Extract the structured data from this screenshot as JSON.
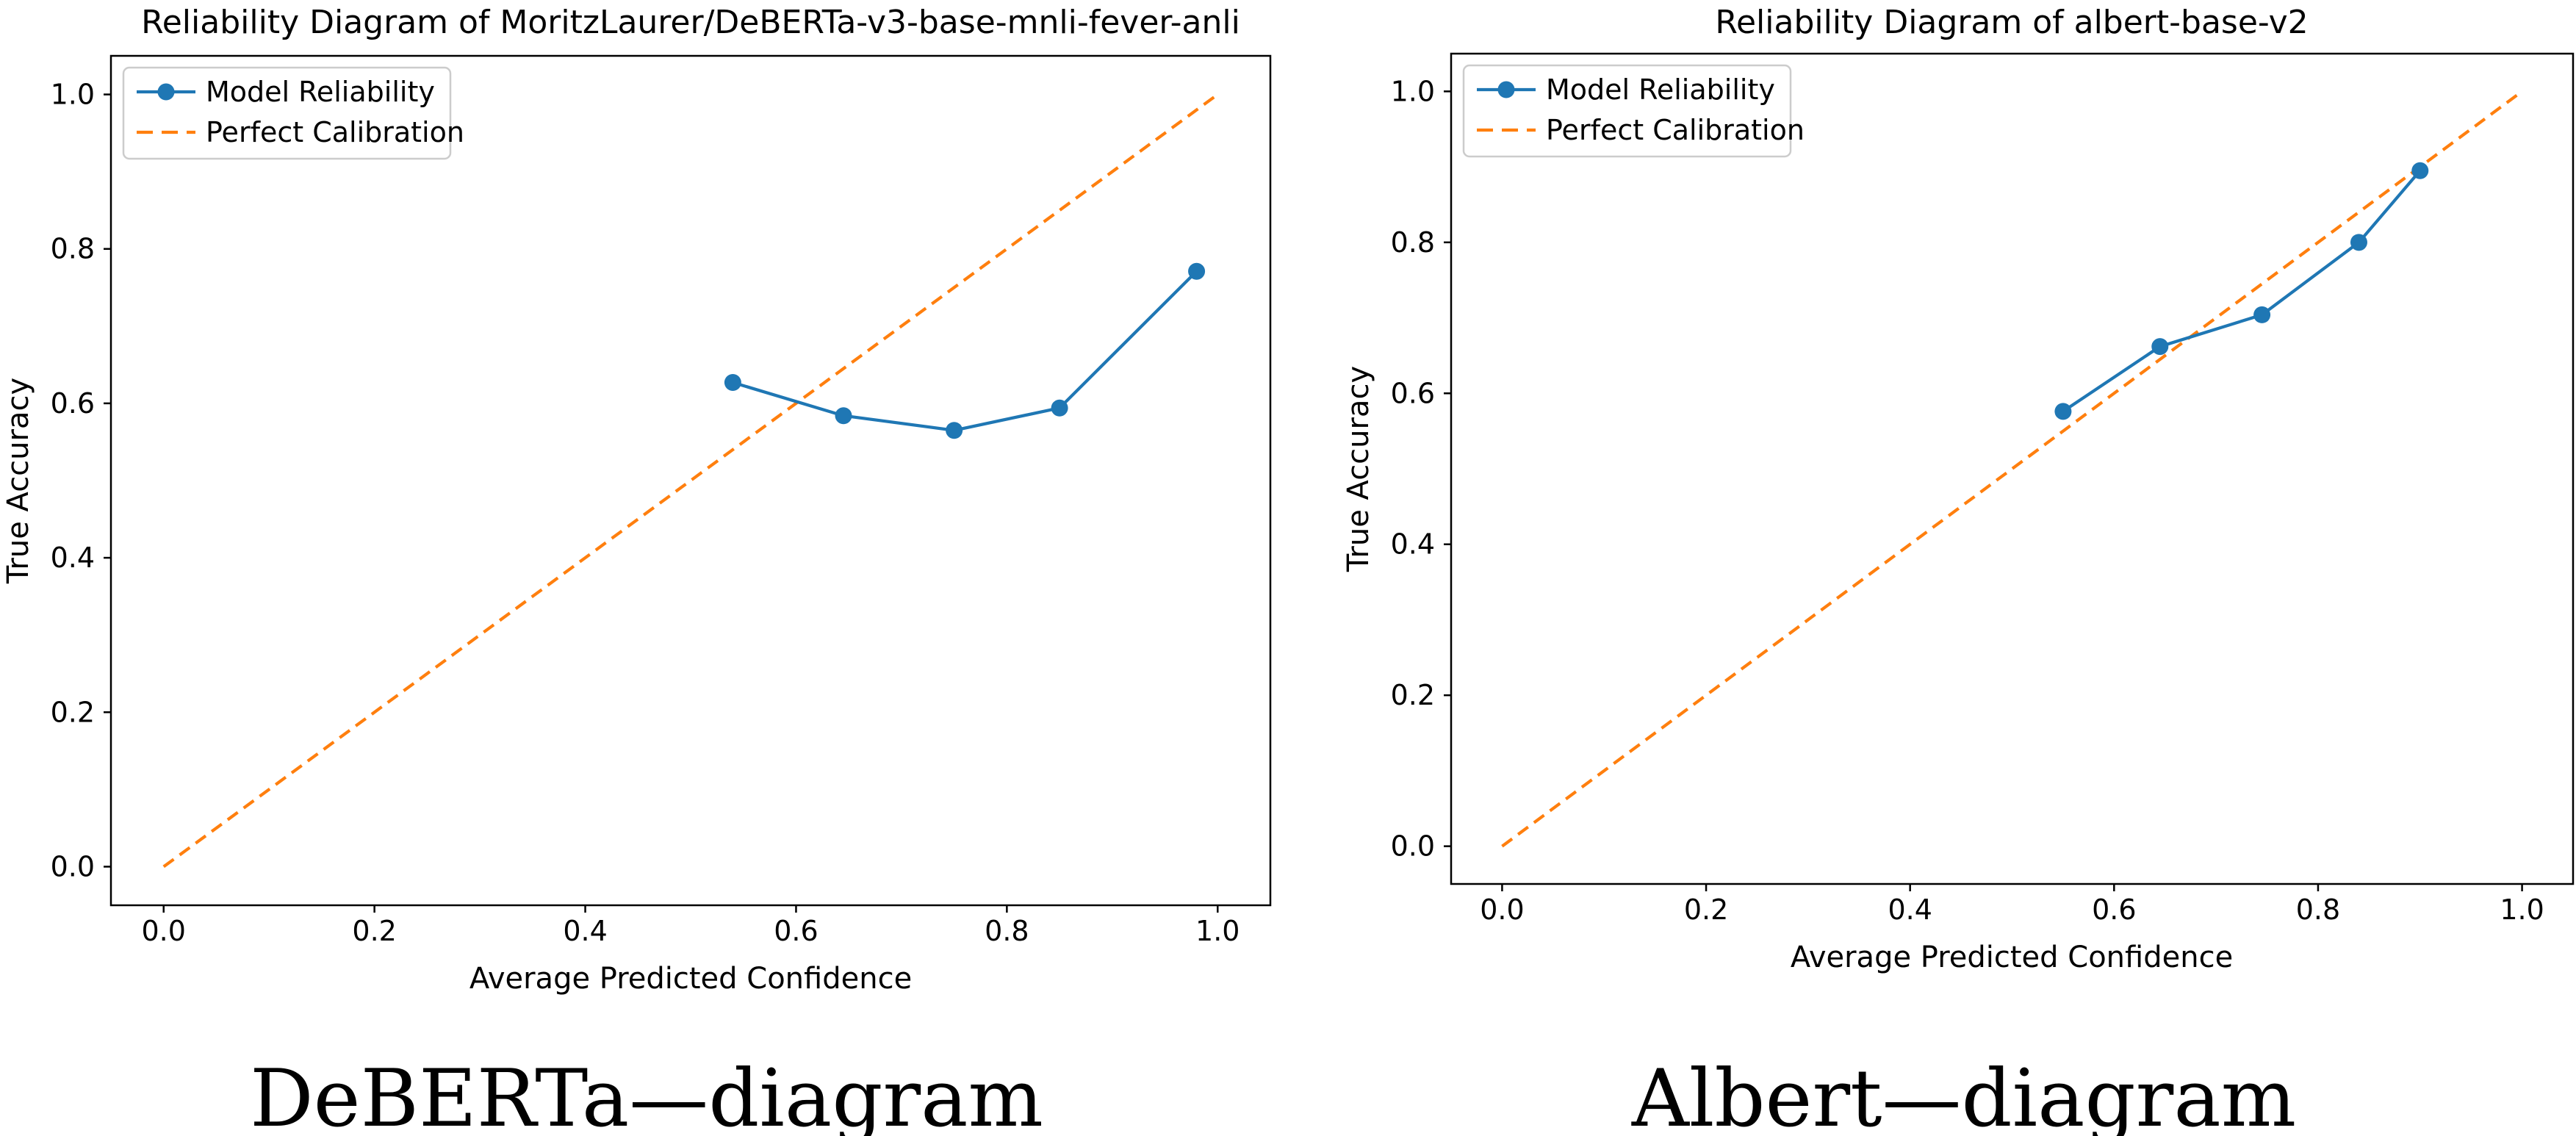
{
  "page": {
    "background": "#ffffff"
  },
  "figures": [
    {
      "caption": "DeBERTa—diagram"
    },
    {
      "caption": "Albert—diagram"
    }
  ],
  "chart_data": [
    {
      "type": "line",
      "title": "Reliability Diagram of MoritzLaurer/DeBERTa-v3-base-mnli-fever-anli",
      "xlabel": "Average Predicted Confidence",
      "ylabel": "True Accuracy",
      "xlim": [
        -0.05,
        1.05
      ],
      "ylim": [
        -0.05,
        1.05
      ],
      "x_ticks": [
        0.0,
        0.2,
        0.4,
        0.6,
        0.8,
        1.0
      ],
      "y_ticks": [
        0.0,
        0.2,
        0.4,
        0.6,
        0.8,
        1.0
      ],
      "grid": false,
      "legend_position": "upper left",
      "series": [
        {
          "name": "Model Reliability",
          "color": "#1f77b4",
          "marker": "circle",
          "line_style": "solid",
          "x": [
            0.54,
            0.645,
            0.75,
            0.85,
            0.98
          ],
          "y": [
            0.627,
            0.584,
            0.565,
            0.594,
            0.771
          ]
        },
        {
          "name": "Perfect Calibration",
          "color": "#ff7f0e",
          "marker": "none",
          "line_style": "dashed",
          "x": [
            0.0,
            1.0
          ],
          "y": [
            0.0,
            1.0
          ]
        }
      ]
    },
    {
      "type": "line",
      "title": "Reliability Diagram of albert-base-v2",
      "xlabel": "Average Predicted Confidence",
      "ylabel": "True Accuracy",
      "xlim": [
        -0.05,
        1.05
      ],
      "ylim": [
        -0.05,
        1.05
      ],
      "x_ticks": [
        0.0,
        0.2,
        0.4,
        0.6,
        0.8,
        1.0
      ],
      "y_ticks": [
        0.0,
        0.2,
        0.4,
        0.6,
        0.8,
        1.0
      ],
      "grid": false,
      "legend_position": "upper left",
      "series": [
        {
          "name": "Model Reliability",
          "color": "#1f77b4",
          "marker": "circle",
          "line_style": "solid",
          "x": [
            0.55,
            0.645,
            0.745,
            0.84,
            0.9
          ],
          "y": [
            0.576,
            0.662,
            0.704,
            0.8,
            0.895
          ]
        },
        {
          "name": "Perfect Calibration",
          "color": "#ff7f0e",
          "marker": "none",
          "line_style": "dashed",
          "x": [
            0.0,
            1.0
          ],
          "y": [
            0.0,
            1.0
          ]
        }
      ]
    }
  ]
}
